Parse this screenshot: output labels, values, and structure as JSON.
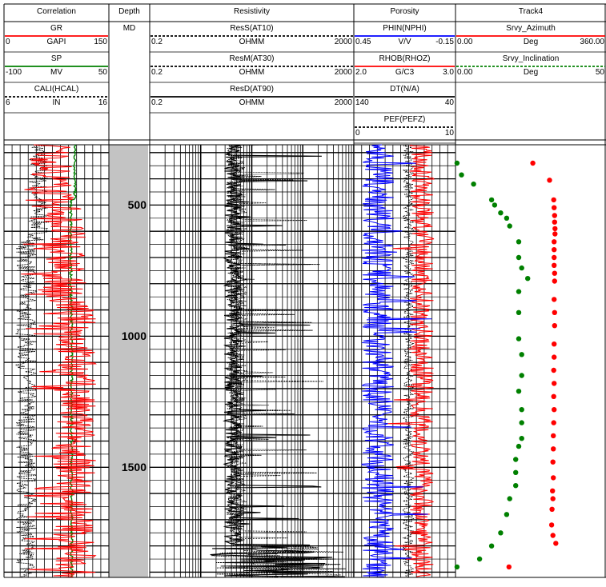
{
  "tracks": [
    {
      "key": "corr",
      "title": "Correlation"
    },
    {
      "key": "depth",
      "title": "Depth",
      "unit": "MD"
    },
    {
      "key": "res",
      "title": "Resistivity"
    },
    {
      "key": "por",
      "title": "Porosity"
    },
    {
      "key": "t4",
      "title": "Track4"
    }
  ],
  "curves": [
    {
      "key": "gr",
      "track": "corr",
      "name": "GR",
      "unit": "GAPI",
      "left": "0",
      "right": "150",
      "color": "#ff0000"
    },
    {
      "key": "sp",
      "track": "corr",
      "name": "SP",
      "unit": "MV",
      "left": "-100",
      "right": "50",
      "color": "#008000"
    },
    {
      "key": "cali",
      "track": "corr",
      "name": "CALI(HCAL)",
      "unit": "IN",
      "left": "6",
      "right": "16",
      "color": "#000000",
      "dashed": true
    },
    {
      "key": "ress",
      "track": "res",
      "name": "ResS(AT10)",
      "unit": "OHMM",
      "left": "0.2",
      "right": "2000",
      "color": "#000000",
      "dashed": true
    },
    {
      "key": "resm",
      "track": "res",
      "name": "ResM(AT30)",
      "unit": "OHMM",
      "left": "0.2",
      "right": "2000",
      "color": "#000000",
      "dashed": true
    },
    {
      "key": "resd",
      "track": "res",
      "name": "ResD(AT90)",
      "unit": "OHMM",
      "left": "0.2",
      "right": "2000",
      "color": "#000000"
    },
    {
      "key": "phin",
      "track": "por",
      "name": "PHIN(NPHI)",
      "unit": "V/V",
      "left": "0.45",
      "right": "-0.15",
      "color": "#0000ff"
    },
    {
      "key": "rhob",
      "track": "por",
      "name": "RHOB(RHOZ)",
      "unit": "G/C3",
      "left": "2.0",
      "right": "3.0",
      "color": "#ff0000"
    },
    {
      "key": "dt",
      "track": "por",
      "name": "DT(N/A)",
      "unit": "",
      "left": "140",
      "right": "40",
      "color": "#000000"
    },
    {
      "key": "pef",
      "track": "por",
      "name": "PEF(PEFZ)",
      "unit": "",
      "left": "0",
      "right": "10",
      "color": "#000000",
      "dashed": true
    },
    {
      "key": "azi",
      "track": "t4",
      "name": "Srvy_Azimuth",
      "unit": "Deg",
      "left": "0.00",
      "right": "360.00",
      "color": "#ff0000"
    },
    {
      "key": "inc",
      "track": "t4",
      "name": "Srvy_Inclination",
      "unit": "Deg",
      "left": "0.00",
      "right": "50",
      "color": "#008000",
      "dashed": true
    }
  ],
  "depth_labels": [
    "500",
    "1000",
    "1500"
  ],
  "chart_data": {
    "type": "line",
    "y_axis": "MD",
    "depth_range": [
      270,
      1920
    ],
    "survey": {
      "Srvy_Azimuth": {
        "unit": "Deg",
        "scale": [
          0,
          360
        ],
        "md": [
          340,
          405,
          480,
          510,
          540,
          565,
          590,
          610,
          640,
          670,
          700,
          730,
          760,
          790,
          860,
          910,
          960,
          1030,
          1080,
          1130,
          1180,
          1230,
          1280,
          1330,
          1380,
          1430,
          1480,
          1540,
          1590,
          1620,
          1660,
          1720,
          1760,
          1790,
          1880
        ],
        "values": [
          185,
          225,
          235,
          236,
          237,
          237,
          238,
          238,
          236,
          236,
          236,
          236,
          237,
          237,
          236,
          237,
          237,
          236,
          236,
          235,
          236,
          235,
          236,
          235,
          234,
          234,
          233,
          234,
          232,
          233,
          231,
          230,
          233,
          240,
          128
        ]
      },
      "Srvy_Inclination": {
        "unit": "Deg",
        "scale": [
          0,
          50
        ],
        "md": [
          340,
          385,
          420,
          480,
          500,
          530,
          550,
          580,
          640,
          700,
          740,
          780,
          830,
          910,
          1010,
          1070,
          1150,
          1210,
          1280,
          1330,
          1390,
          1420,
          1470,
          1520,
          1570,
          1620,
          1680,
          1750,
          1800,
          1850,
          1880
        ],
        "values": [
          0.5,
          2,
          6,
          12,
          13,
          15,
          17,
          18,
          21,
          21,
          22,
          24,
          21,
          21,
          21,
          22,
          22,
          21,
          22,
          22,
          22,
          21,
          20,
          20,
          20,
          18,
          17,
          15,
          12,
          8,
          0.5
        ]
      }
    }
  }
}
